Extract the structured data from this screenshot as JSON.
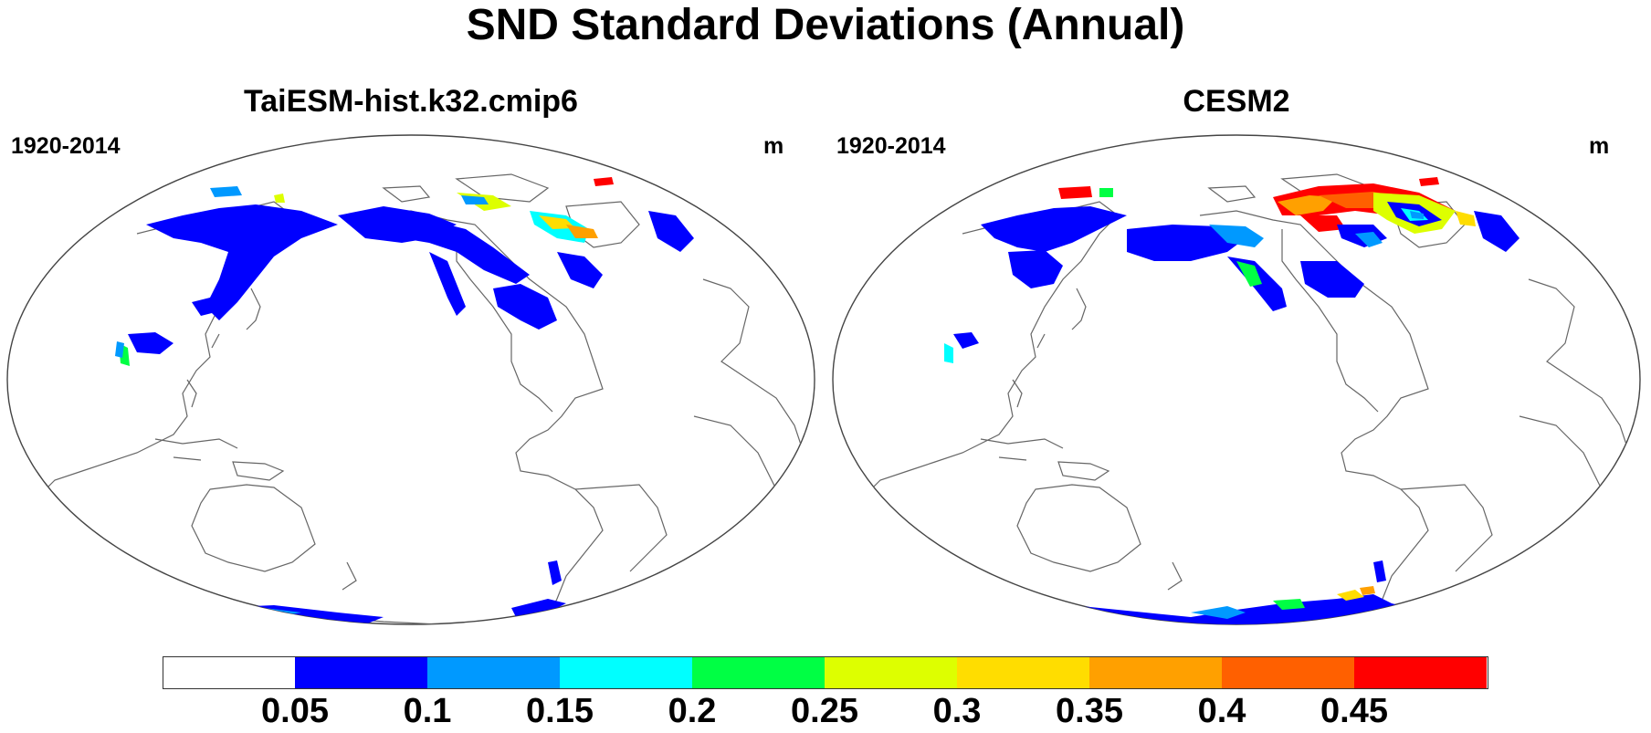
{
  "title": "SND Standard Deviations (Annual)",
  "panels": [
    {
      "title": "TaiESM-hist.k32.cmip6",
      "period": "1920-2014",
      "units": "m"
    },
    {
      "title": "CESM2",
      "period": "1920-2014",
      "units": "m"
    }
  ],
  "colorbar": {
    "levels": [
      "0.05",
      "0.1",
      "0.15",
      "0.2",
      "0.25",
      "0.3",
      "0.35",
      "0.4",
      "0.45"
    ],
    "colors": [
      "#ffffff",
      "#0000ff",
      "#0099ff",
      "#00ffff",
      "#00ff44",
      "#ddff00",
      "#ffdd00",
      "#ffa000",
      "#ff6000",
      "#ff0000"
    ]
  },
  "map": {
    "projection": "Robinson",
    "central_longitude": "Pacific-centered",
    "land_color": "#ffffff",
    "coastline_color": "#555555"
  }
}
